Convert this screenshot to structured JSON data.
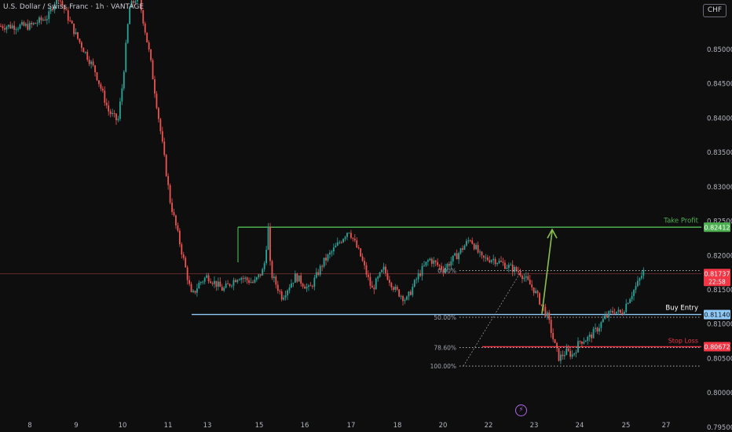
{
  "header": {
    "title": "U.S. Dollar / Swiss Franc · 1h · VANTAGE",
    "currency_button": "CHF"
  },
  "icons": {
    "lightning": "lightning-icon"
  },
  "colors": {
    "background": "#0e0e0f",
    "up": "#26a69a",
    "down": "#ef5350",
    "take_profit": "#4caf50",
    "entry": "#90caf9",
    "stop": "#f23645",
    "arrow": "#8bc34a"
  },
  "chart_data": {
    "type": "candlestick",
    "ylim": [
      0.7943,
      0.8572
    ],
    "y_ticks": [
      "0.85000",
      "0.84500",
      "0.84000",
      "0.83500",
      "0.83000",
      "0.82500",
      "0.82000",
      "0.81500",
      "0.81000",
      "0.80500",
      "0.80000",
      "0.79500"
    ],
    "x_ticks": [
      "8",
      "9",
      "10",
      "11",
      "13",
      "15",
      "16",
      "17",
      "18",
      "20",
      "22",
      "23",
      "24",
      "25",
      "27"
    ],
    "last_price": "0.81737",
    "countdown": "22:58",
    "levels": [
      {
        "name": "Take Profit",
        "price": 0.82412,
        "label": "0.82412"
      },
      {
        "name": "Buy Entry",
        "price": 0.8114,
        "label": "0.81140"
      },
      {
        "name": "Stop Loss",
        "price": 0.80672,
        "label": "0.80672"
      }
    ],
    "fib_levels": [
      {
        "label": "0.00%",
        "price": 0.8178
      },
      {
        "label": "50.00%",
        "price": 0.811
      },
      {
        "label": "78.60%",
        "price": 0.8066
      },
      {
        "label": "100.00%",
        "price": 0.8039
      }
    ],
    "path": [
      [
        8,
        0.8534
      ],
      [
        8.4,
        0.8548
      ],
      [
        8.6,
        0.858
      ],
      [
        9.0,
        0.852
      ],
      [
        9.4,
        0.847
      ],
      [
        9.7,
        0.841
      ],
      [
        9.9,
        0.8395
      ],
      [
        10.0,
        0.845
      ],
      [
        10.15,
        0.856
      ],
      [
        10.35,
        0.858
      ],
      [
        10.6,
        0.849
      ],
      [
        10.9,
        0.835
      ],
      [
        11.05,
        0.828
      ],
      [
        11.25,
        0.823
      ],
      [
        11.45,
        0.818
      ],
      [
        11.6,
        0.814
      ],
      [
        11.8,
        0.816
      ],
      [
        12.0,
        0.817
      ],
      [
        12.3,
        0.815
      ],
      [
        12.6,
        0.817
      ],
      [
        12.9,
        0.816
      ],
      [
        13.1,
        0.818
      ],
      [
        13.2,
        0.824
      ],
      [
        13.25,
        0.8175
      ],
      [
        13.5,
        0.814
      ],
      [
        13.8,
        0.817
      ],
      [
        14.1,
        0.815
      ],
      [
        14.4,
        0.819
      ],
      [
        14.7,
        0.8215
      ],
      [
        14.95,
        0.8238
      ],
      [
        15.2,
        0.82
      ],
      [
        15.45,
        0.815
      ],
      [
        15.7,
        0.818
      ],
      [
        15.95,
        0.815
      ],
      [
        16.2,
        0.8135
      ],
      [
        16.45,
        0.817
      ],
      [
        16.7,
        0.8195
      ],
      [
        17.0,
        0.818
      ],
      [
        17.3,
        0.82
      ],
      [
        17.6,
        0.8225
      ],
      [
        17.85,
        0.8195
      ],
      [
        18.1,
        0.8195
      ],
      [
        18.4,
        0.8185
      ],
      [
        18.7,
        0.8175
      ],
      [
        19.0,
        0.815
      ],
      [
        19.3,
        0.811
      ],
      [
        19.45,
        0.807
      ],
      [
        19.55,
        0.805
      ],
      [
        19.7,
        0.806
      ],
      [
        19.85,
        0.8055
      ],
      [
        20.0,
        0.8075
      ],
      [
        20.2,
        0.808
      ],
      [
        20.4,
        0.8095
      ],
      [
        20.55,
        0.811
      ],
      [
        20.75,
        0.812
      ],
      [
        20.9,
        0.8115
      ],
      [
        21.05,
        0.8135
      ],
      [
        21.3,
        0.816
      ],
      [
        21.45,
        0.8178
      ]
    ]
  }
}
